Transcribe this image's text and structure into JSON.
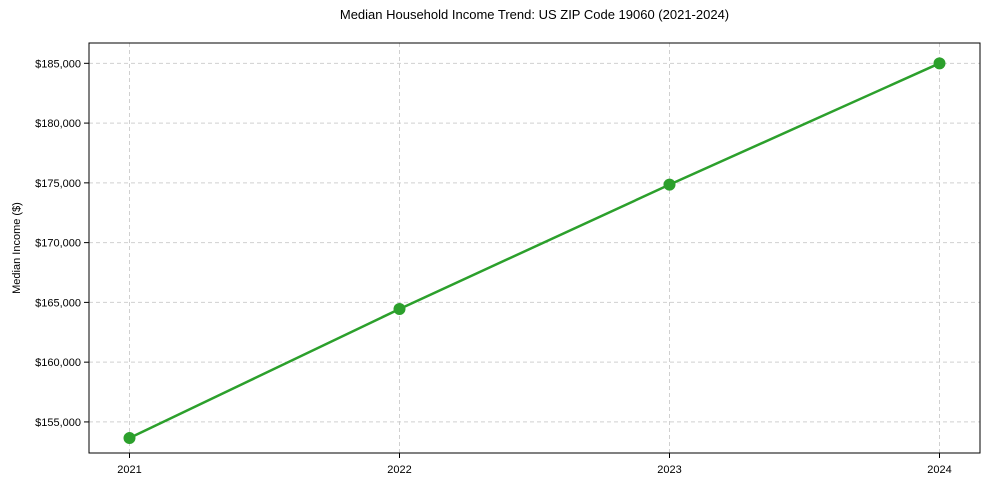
{
  "chart_data": {
    "type": "line",
    "title": "Median Household Income Trend: US ZIP Code 19060 (2021-2024)",
    "xlabel": "",
    "ylabel": "Median Income ($)",
    "x": [
      2021,
      2022,
      2023,
      2024
    ],
    "x_tick_labels": [
      "2021",
      "2022",
      "2023",
      "2024"
    ],
    "series": [
      {
        "name": "Median Household Income",
        "values": [
          153650,
          164450,
          174850,
          185000
        ],
        "color": "#2ca02c",
        "marker": "circle"
      }
    ],
    "y_ticks": [
      155000,
      160000,
      165000,
      170000,
      175000,
      180000,
      185000
    ],
    "y_tick_labels": [
      "$155,000",
      "$160,000",
      "$165,000",
      "$170,000",
      "$175,000",
      "$180,000",
      "$185,000"
    ],
    "xlim": [
      2020.85,
      2024.15
    ],
    "ylim": [
      152400,
      186700
    ],
    "grid": "both-axes-dashed",
    "legend": "none",
    "colors": {
      "line": "#2ca02c",
      "marker": "#2ca02c",
      "grid": "#d0d0d0",
      "spine": "#000000",
      "text": "#000000",
      "background": "#ffffff"
    }
  }
}
